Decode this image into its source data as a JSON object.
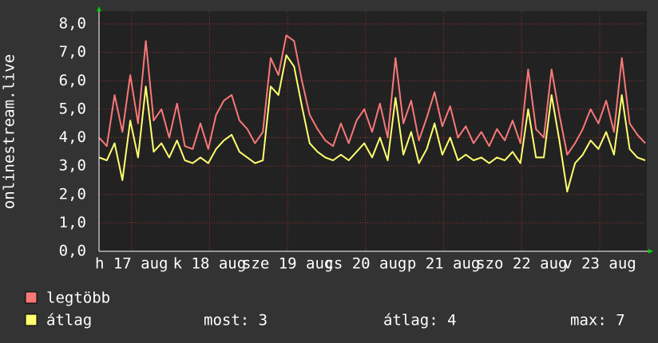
{
  "chart_data": {
    "type": "line",
    "ylabel": "onlinestream.live",
    "x": [
      0,
      2.4,
      4.8,
      7.2,
      9.6,
      12,
      14.4,
      16.8,
      19.2,
      21.6,
      24,
      26.4,
      28.8,
      31.2,
      33.6,
      36,
      38.4,
      40.8,
      43.2,
      45.6,
      48,
      50.4,
      52.8,
      55.2,
      57.6,
      60,
      62.4,
      64.8,
      67.2,
      69.6,
      72,
      74.4,
      76.8,
      79.2,
      81.6,
      84,
      86.4,
      88.8,
      91.2,
      93.6,
      96,
      98.4,
      100.8,
      103.2,
      105.6,
      108,
      110.4,
      112.8,
      115.2,
      117.6,
      120,
      122.4,
      124.8,
      127.2,
      129.6,
      132,
      134.4,
      136.8,
      139.2,
      141.6,
      144,
      146.4,
      148.8,
      151.2,
      153.6,
      156,
      158.4,
      160.8,
      163.2,
      165.6,
      168
    ],
    "xlim": [
      0,
      168
    ],
    "xticks": [
      {
        "value": 10,
        "label": "h 17 aug"
      },
      {
        "value": 34,
        "label": "k 18 aug"
      },
      {
        "value": 58,
        "label": "sze 19 aug"
      },
      {
        "value": 82,
        "label": "cs 20 aug"
      },
      {
        "value": 106,
        "label": "p 21 aug"
      },
      {
        "value": 130,
        "label": "szo 22 aug"
      },
      {
        "value": 154,
        "label": "v 23 aug"
      }
    ],
    "ylim": [
      0,
      8
    ],
    "yticks": [
      {
        "value": 0,
        "label": "0,0"
      },
      {
        "value": 1,
        "label": "1,0"
      },
      {
        "value": 2,
        "label": "2,0"
      },
      {
        "value": 3,
        "label": "3,0"
      },
      {
        "value": 4,
        "label": "4,0"
      },
      {
        "value": 5,
        "label": "5,0"
      },
      {
        "value": 6,
        "label": "6,0"
      },
      {
        "value": 7,
        "label": "7,0"
      },
      {
        "value": 8,
        "label": "8,0"
      }
    ],
    "grid": true,
    "series": [
      {
        "name": "legtöbb",
        "color": "#f87878",
        "values": [
          4.0,
          3.7,
          5.5,
          4.2,
          6.2,
          4.5,
          7.4,
          4.6,
          5.0,
          4.0,
          5.2,
          3.7,
          3.6,
          4.5,
          3.6,
          4.8,
          5.3,
          5.5,
          4.6,
          4.3,
          3.8,
          4.2,
          6.8,
          6.2,
          7.6,
          7.4,
          6.0,
          4.8,
          4.3,
          3.9,
          3.7,
          4.5,
          3.8,
          4.6,
          5.0,
          4.2,
          5.2,
          4.0,
          6.8,
          4.5,
          5.3,
          3.9,
          4.7,
          5.6,
          4.4,
          5.1,
          4.0,
          4.4,
          3.8,
          4.2,
          3.7,
          4.3,
          3.9,
          4.6,
          3.8,
          6.4,
          4.3,
          4.0,
          6.4,
          4.8,
          3.4,
          3.8,
          4.3,
          5.0,
          4.5,
          5.3,
          4.2,
          6.8,
          4.5,
          4.1,
          3.8
        ]
      },
      {
        "name": "átlag",
        "color": "#ffff70",
        "values": [
          3.3,
          3.2,
          3.8,
          2.5,
          4.6,
          3.3,
          5.8,
          3.5,
          3.8,
          3.3,
          3.9,
          3.2,
          3.1,
          3.3,
          3.1,
          3.6,
          3.9,
          4.1,
          3.5,
          3.3,
          3.1,
          3.2,
          5.8,
          5.5,
          6.9,
          6.5,
          5.1,
          3.8,
          3.5,
          3.3,
          3.2,
          3.4,
          3.2,
          3.5,
          3.8,
          3.3,
          4.0,
          3.2,
          5.4,
          3.4,
          4.2,
          3.1,
          3.6,
          4.5,
          3.4,
          4.0,
          3.2,
          3.4,
          3.2,
          3.3,
          3.1,
          3.3,
          3.2,
          3.5,
          3.1,
          5.0,
          3.3,
          3.3,
          5.5,
          3.9,
          2.1,
          3.1,
          3.4,
          3.9,
          3.6,
          4.2,
          3.4,
          5.5,
          3.6,
          3.3,
          3.2
        ]
      }
    ],
    "legend_stats": [
      "most: 3",
      "átlag: 4",
      "max: 7"
    ]
  }
}
